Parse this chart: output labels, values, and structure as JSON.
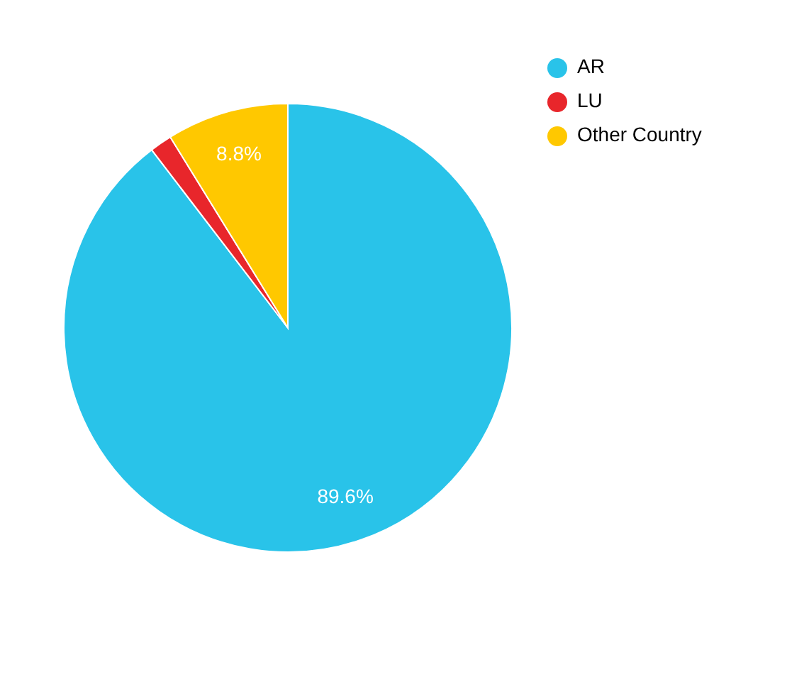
{
  "chart_data": {
    "type": "pie",
    "categories": [
      "AR",
      "LU",
      "Other Country"
    ],
    "values": [
      89.6,
      1.6,
      8.8
    ],
    "colors": [
      "#29c3e9",
      "#e8262b",
      "#ffc800"
    ],
    "value_labels": [
      "89.6%",
      null,
      "8.8%"
    ],
    "legend": "top right"
  }
}
